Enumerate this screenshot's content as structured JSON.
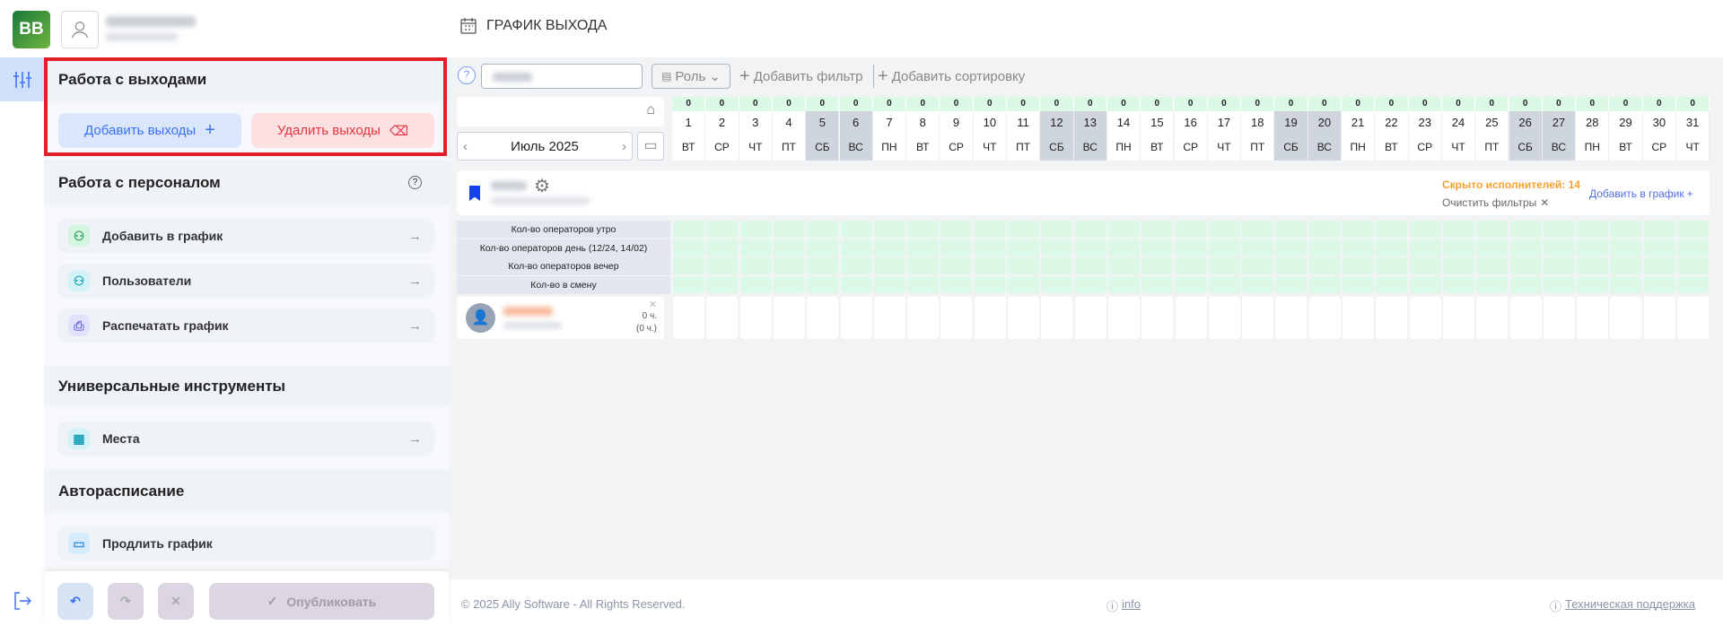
{
  "header": {
    "logo": "BB",
    "title": "ГРАФИК ВЫХОДА"
  },
  "sidebar": {
    "section1": {
      "title": "Работа с выходами",
      "add_label": "Добавить выходы",
      "delete_label": "Удалить выходы"
    },
    "section2": {
      "title": "Работа с персоналом",
      "items": [
        {
          "label": "Добавить в график",
          "icon": "user-icon"
        },
        {
          "label": "Пользователи",
          "icon": "user-icon"
        },
        {
          "label": "Распечатать график",
          "icon": "printer-icon"
        }
      ]
    },
    "section3": {
      "title": "Универсальные инструменты",
      "items": [
        {
          "label": "Места",
          "icon": "building-icon"
        }
      ]
    },
    "section4": {
      "title": "Авторасписание",
      "items": [
        {
          "label": "Продлить график",
          "icon": "extend-icon"
        }
      ]
    },
    "publish_label": "Опубликовать"
  },
  "toolbar": {
    "role_label": "Роль",
    "add_filter": "Добавить фильтр",
    "add_sort": "Добавить сортировку"
  },
  "calendar": {
    "month": "Июль 2025",
    "days": [
      1,
      2,
      3,
      4,
      5,
      6,
      7,
      8,
      9,
      10,
      11,
      12,
      13,
      14,
      15,
      16,
      17,
      18,
      19,
      20,
      21,
      22,
      23,
      24,
      25,
      26,
      27,
      28,
      29,
      30,
      31
    ],
    "weekdays": [
      "ВТ",
      "СР",
      "ЧТ",
      "ПТ",
      "СБ",
      "ВС",
      "ПН",
      "ВТ",
      "СР",
      "ЧТ",
      "ПТ",
      "СБ",
      "ВС",
      "ПН",
      "ВТ",
      "СР",
      "ЧТ",
      "ПТ",
      "СБ",
      "ВС",
      "ПН",
      "ВТ",
      "СР",
      "ЧТ",
      "ПТ",
      "СБ",
      "ВС",
      "ПН",
      "ВТ",
      "СР",
      "ЧТ"
    ],
    "counts": [
      0,
      0,
      0,
      0,
      0,
      0,
      0,
      0,
      0,
      0,
      0,
      0,
      0,
      0,
      0,
      0,
      0,
      0,
      0,
      0,
      0,
      0,
      0,
      0,
      0,
      0,
      0,
      0,
      0,
      0,
      0
    ],
    "weekend": [
      5,
      6,
      12,
      13,
      19,
      20,
      26,
      27
    ]
  },
  "group": {
    "hidden": "Скрыто исполнителей: 14",
    "clear_filters": "Очистить фильтры",
    "add_to_schedule": "Добавить в график"
  },
  "stats": [
    "Кол-во операторов утро",
    "Кол-во операторов день (12/24, 14/02)",
    "Кол-во операторов вечер",
    "Кол-во в смену"
  ],
  "employee": {
    "hours": "0 ч.",
    "hours_paren": "(0 ч.)"
  },
  "footer": {
    "copyright": "© 2025 Ally Software - All Rights Reserved.",
    "info": "info",
    "support": "Техническая поддержка"
  },
  "colors": {
    "accent": "#3b6ff5",
    "danger": "#e5343d",
    "hidden": "#f5a030",
    "weekend": "#cfd5dd",
    "count_bg": "#dcf8e6"
  }
}
